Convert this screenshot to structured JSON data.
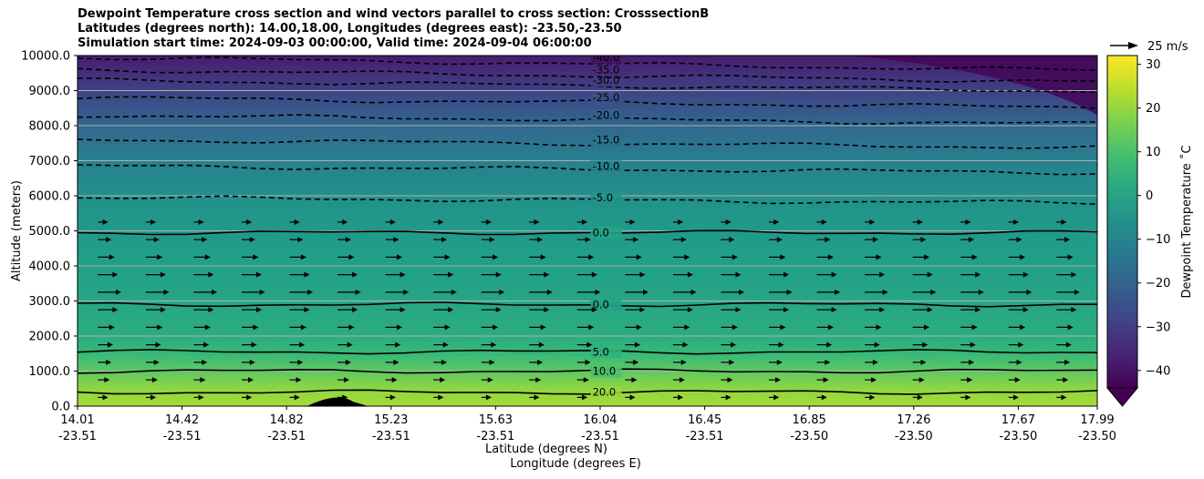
{
  "chart_data": {
    "type": "heatmap",
    "title_lines": [
      "Dewpoint Temperature cross section and wind vectors parallel to cross section: CrosssectionB",
      "Latitudes (degrees north): 14.00,18.00, Longitudes (degrees east): -23.50,-23.50",
      "Simulation start time: 2024-09-03 00:00:00, Valid time: 2024-09-04 06:00:00"
    ],
    "xlabel": "Latitude (degrees N)",
    "xlabel2": "Longitude (degrees E)",
    "ylabel": "Altitude (meters)",
    "xlim": [
      0,
      1
    ],
    "ylim": [
      0,
      10000
    ],
    "x_ticks": [
      {
        "lat": "14.01",
        "lon": "-23.51",
        "pos": 0.0
      },
      {
        "lat": "14.42",
        "lon": "-23.51",
        "pos": 0.1025
      },
      {
        "lat": "14.82",
        "lon": "-23.51",
        "pos": 0.205
      },
      {
        "lat": "15.23",
        "lon": "-23.51",
        "pos": 0.3075
      },
      {
        "lat": "15.63",
        "lon": "-23.51",
        "pos": 0.41
      },
      {
        "lat": "16.04",
        "lon": "-23.51",
        "pos": 0.5125
      },
      {
        "lat": "16.45",
        "lon": "-23.51",
        "pos": 0.615
      },
      {
        "lat": "16.85",
        "lon": "-23.50",
        "pos": 0.7175
      },
      {
        "lat": "17.26",
        "lon": "-23.50",
        "pos": 0.82
      },
      {
        "lat": "17.67",
        "lon": "-23.50",
        "pos": 0.9225
      },
      {
        "lat": "17.99",
        "lon": "-23.50",
        "pos": 1.0
      }
    ],
    "y_ticks": [
      {
        "value": 0,
        "label": "0.0"
      },
      {
        "value": 1000,
        "label": "1000.0"
      },
      {
        "value": 2000,
        "label": "2000.0"
      },
      {
        "value": 3000,
        "label": "3000.0"
      },
      {
        "value": 4000,
        "label": "4000.0"
      },
      {
        "value": 5000,
        "label": "5000.0"
      },
      {
        "value": 6000,
        "label": "6000.0"
      },
      {
        "value": 7000,
        "label": "7000.0"
      },
      {
        "value": 8000,
        "label": "8000.0"
      },
      {
        "value": 9000,
        "label": "9000.0"
      },
      {
        "value": 10000,
        "label": "10000.0"
      }
    ],
    "grid": "horizontal",
    "colorbar": {
      "label": "Dewpoint Temperature ˚C",
      "range": [
        -44,
        32
      ],
      "ticks": [
        {
          "value": 30,
          "label": "30"
        },
        {
          "value": 20,
          "label": "20"
        },
        {
          "value": 10,
          "label": "10"
        },
        {
          "value": 0,
          "label": "0"
        },
        {
          "value": -10,
          "label": "−10"
        },
        {
          "value": -20,
          "label": "−20"
        },
        {
          "value": -30,
          "label": "−30"
        },
        {
          "value": -40,
          "label": "−40"
        }
      ],
      "colormap": "viridis",
      "extend": "min"
    },
    "wind_reference": {
      "label": "25 m/s",
      "speed": 25
    },
    "column_profile": [
      {
        "alt": 0,
        "t": 22
      },
      {
        "alt": 500,
        "t": 19
      },
      {
        "alt": 1000,
        "t": 13
      },
      {
        "alt": 1500,
        "t": 7
      },
      {
        "alt": 2000,
        "t": 3
      },
      {
        "alt": 3000,
        "t": 1
      },
      {
        "alt": 4000,
        "t": -1
      },
      {
        "alt": 5000,
        "t": -3
      },
      {
        "alt": 6000,
        "t": -6
      },
      {
        "alt": 7000,
        "t": -11
      },
      {
        "alt": 8000,
        "t": -19
      },
      {
        "alt": 9000,
        "t": -29
      },
      {
        "alt": 10000,
        "t": -38
      }
    ],
    "contour_levels": [
      {
        "value": 20,
        "label": "20.0",
        "style": "solid",
        "alt": 400
      },
      {
        "value": 10,
        "label": "10.0",
        "style": "solid",
        "alt": 1000
      },
      {
        "value": 5,
        "label": "5.0",
        "style": "solid",
        "alt": 1550
      },
      {
        "value": 0,
        "label": "0.0",
        "style": "solid",
        "alt": 2900
      },
      {
        "value": 0,
        "label": "0.0",
        "style": "solid",
        "alt": 4950
      },
      {
        "value": -5,
        "label": "-5.0",
        "style": "dashed",
        "alt": 5950
      },
      {
        "value": -10,
        "label": "-10.0",
        "style": "dashed",
        "alt": 6850
      },
      {
        "value": -15,
        "label": "-15.0",
        "style": "dashed",
        "alt": 7600
      },
      {
        "value": -20,
        "label": "-20.0",
        "style": "dashed",
        "alt": 8300
      },
      {
        "value": -25,
        "label": "-25.0",
        "style": "dashed",
        "alt": 8800
      },
      {
        "value": -30,
        "label": "-30.0",
        "style": "dashed",
        "alt": 9300
      },
      {
        "value": -35,
        "label": "-35.0",
        "style": "dashed",
        "alt": 9600
      },
      {
        "value": -40,
        "label": "-40.0",
        "style": "dashed",
        "alt": 9950
      }
    ],
    "wind_rows": [
      {
        "alt": 250,
        "speed": 8
      },
      {
        "alt": 750,
        "speed": 10
      },
      {
        "alt": 1250,
        "speed": 12
      },
      {
        "alt": 1750,
        "speed": 14
      },
      {
        "alt": 2250,
        "speed": 16
      },
      {
        "alt": 2750,
        "speed": 20
      },
      {
        "alt": 3250,
        "speed": 24
      },
      {
        "alt": 3750,
        "speed": 20
      },
      {
        "alt": 4250,
        "speed": 16
      },
      {
        "alt": 4750,
        "speed": 12
      },
      {
        "alt": 5250,
        "speed": 8
      }
    ]
  }
}
